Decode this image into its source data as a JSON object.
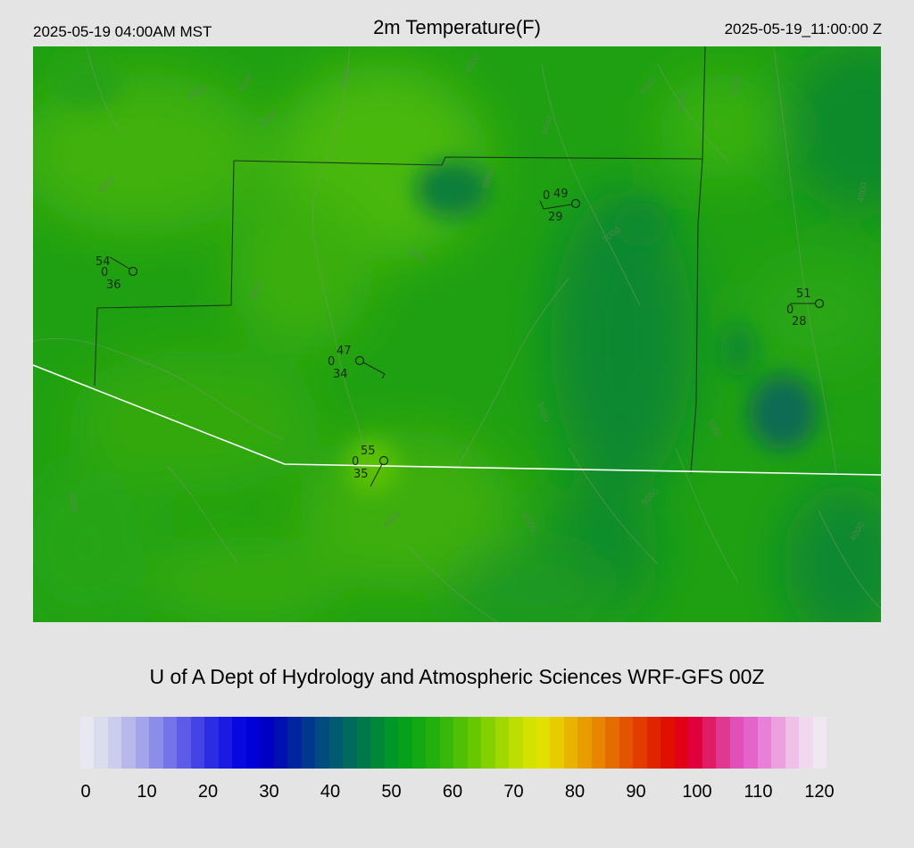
{
  "header": {
    "local_time": "2025-05-19 04:00AM MST",
    "title": "2m Temperature(F)",
    "utc_time": "2025-05-19_11:00:00 Z"
  },
  "credit": "U of A Dept of Hydrology and Atmospheric Sciences WRF-GFS 00Z",
  "stations": [
    {
      "temp": "54",
      "cloud": "0",
      "dewpoint": "36"
    },
    {
      "temp": "49",
      "cloud": "0",
      "dewpoint": "29"
    },
    {
      "temp": "51",
      "cloud": "0",
      "dewpoint": "28"
    },
    {
      "temp": "47",
      "cloud": "0",
      "dewpoint": "34"
    },
    {
      "temp": "55",
      "cloud": "0",
      "dewpoint": "35"
    }
  ],
  "contour_labels": [
    "4000",
    "4000",
    "4000",
    "5000",
    "5000",
    "5000",
    "5000",
    "4000",
    "5000",
    "4000",
    "5000",
    "4000",
    "5000",
    "4000",
    "4000",
    "5000",
    "4000",
    "5000",
    "4000",
    "4000",
    "5000",
    "4000"
  ],
  "colorbar": {
    "ticks": [
      "0",
      "10",
      "20",
      "30",
      "40",
      "50",
      "60",
      "70",
      "80",
      "90",
      "100",
      "110",
      "120"
    ],
    "colors": [
      "#e8e8f2",
      "#dcdcef",
      "#ccccec",
      "#b8b8ea",
      "#a4a4ea",
      "#8c8ce9",
      "#7474e8",
      "#5c5ce8",
      "#4444e6",
      "#2c2ce4",
      "#1a1ae2",
      "#0808e0",
      "#0000d8",
      "#0000c4",
      "#0010b0",
      "#0024a0",
      "#003890",
      "#004c80",
      "#005a70",
      "#006a5c",
      "#00784a",
      "#008838",
      "#009628",
      "#06a01a",
      "#14a812",
      "#24b00c",
      "#38b808",
      "#50c004",
      "#68c800",
      "#84d000",
      "#a0d800",
      "#bcde00",
      "#d4e200",
      "#e2e000",
      "#e8cc00",
      "#e8b400",
      "#e89c00",
      "#e88400",
      "#e66c00",
      "#e45400",
      "#e23c00",
      "#e02400",
      "#e01000",
      "#e00018",
      "#e0003c",
      "#e01c64",
      "#e03890",
      "#e050b8",
      "#e464cc",
      "#e880d8",
      "#eca0e0",
      "#f0c0e8",
      "#f2d8ee",
      "#f0e8f0"
    ]
  }
}
